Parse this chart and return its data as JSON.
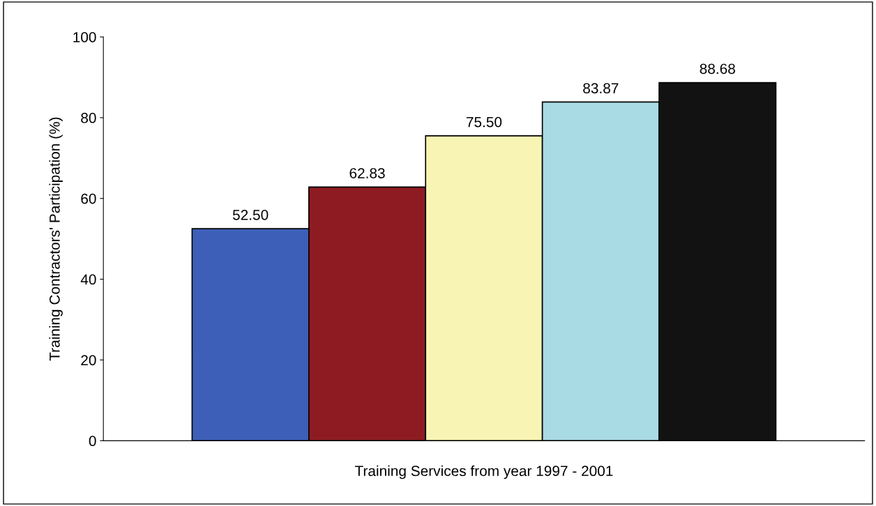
{
  "chart_data": {
    "type": "bar",
    "xlabel": "Training Services from year 1997 - 2001",
    "ylabel": "Training Contractors' Participation (%)",
    "categories": [
      null,
      null,
      null,
      null,
      null
    ],
    "values": [
      52.5,
      62.83,
      75.5,
      83.87,
      88.68
    ],
    "value_labels": [
      "52.50",
      "62.83",
      "75.50",
      "83.87",
      "88.68"
    ],
    "colors": [
      "#3d5fb8",
      "#8e1b22",
      "#f8f5b4",
      "#a9dbe4",
      "#121212"
    ],
    "ylim": [
      0,
      100
    ],
    "yticks": [
      0,
      20,
      40,
      60,
      80,
      100
    ],
    "grid": false,
    "legend": false
  }
}
